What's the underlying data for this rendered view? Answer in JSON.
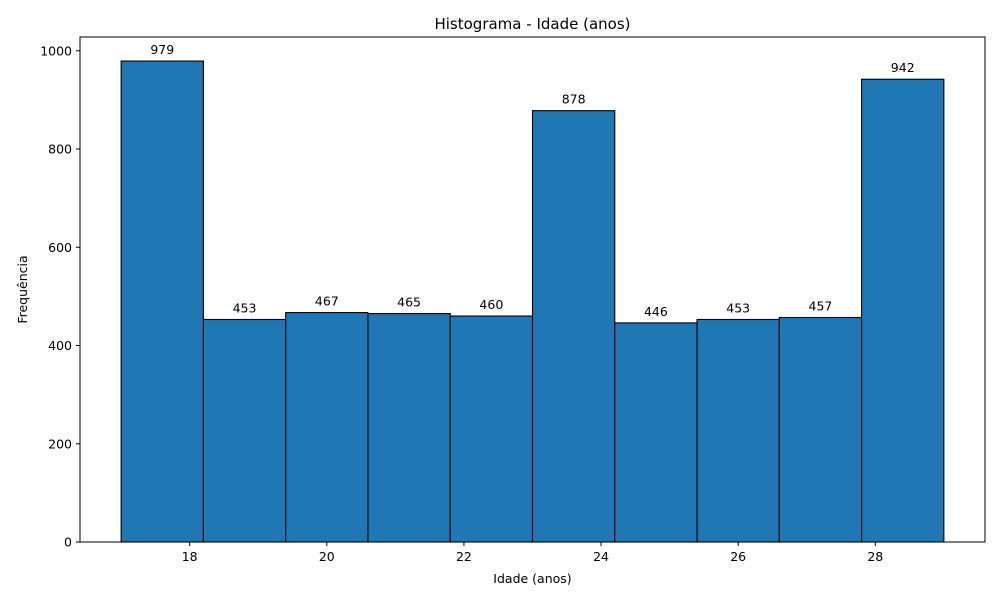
{
  "chart_data": {
    "type": "bar",
    "title": "Histograma - Idade (anos)",
    "xlabel": "Idade (anos)",
    "ylabel": "Frequência",
    "bin_edges": [
      17.0,
      18.2,
      19.4,
      20.6,
      21.8,
      23.0,
      24.2,
      25.4,
      26.6,
      27.8,
      29.0
    ],
    "values": [
      979,
      453,
      467,
      465,
      460,
      878,
      446,
      453,
      457,
      942
    ],
    "xlim": [
      16.4,
      29.6
    ],
    "ylim": [
      0,
      1028
    ],
    "x_ticks": [
      18,
      20,
      22,
      24,
      26,
      28
    ],
    "y_ticks": [
      0,
      200,
      400,
      600,
      800,
      1000
    ],
    "bar_color": "#1f77b4",
    "edge_color": "#000000",
    "grid": false,
    "data_labels": true
  }
}
